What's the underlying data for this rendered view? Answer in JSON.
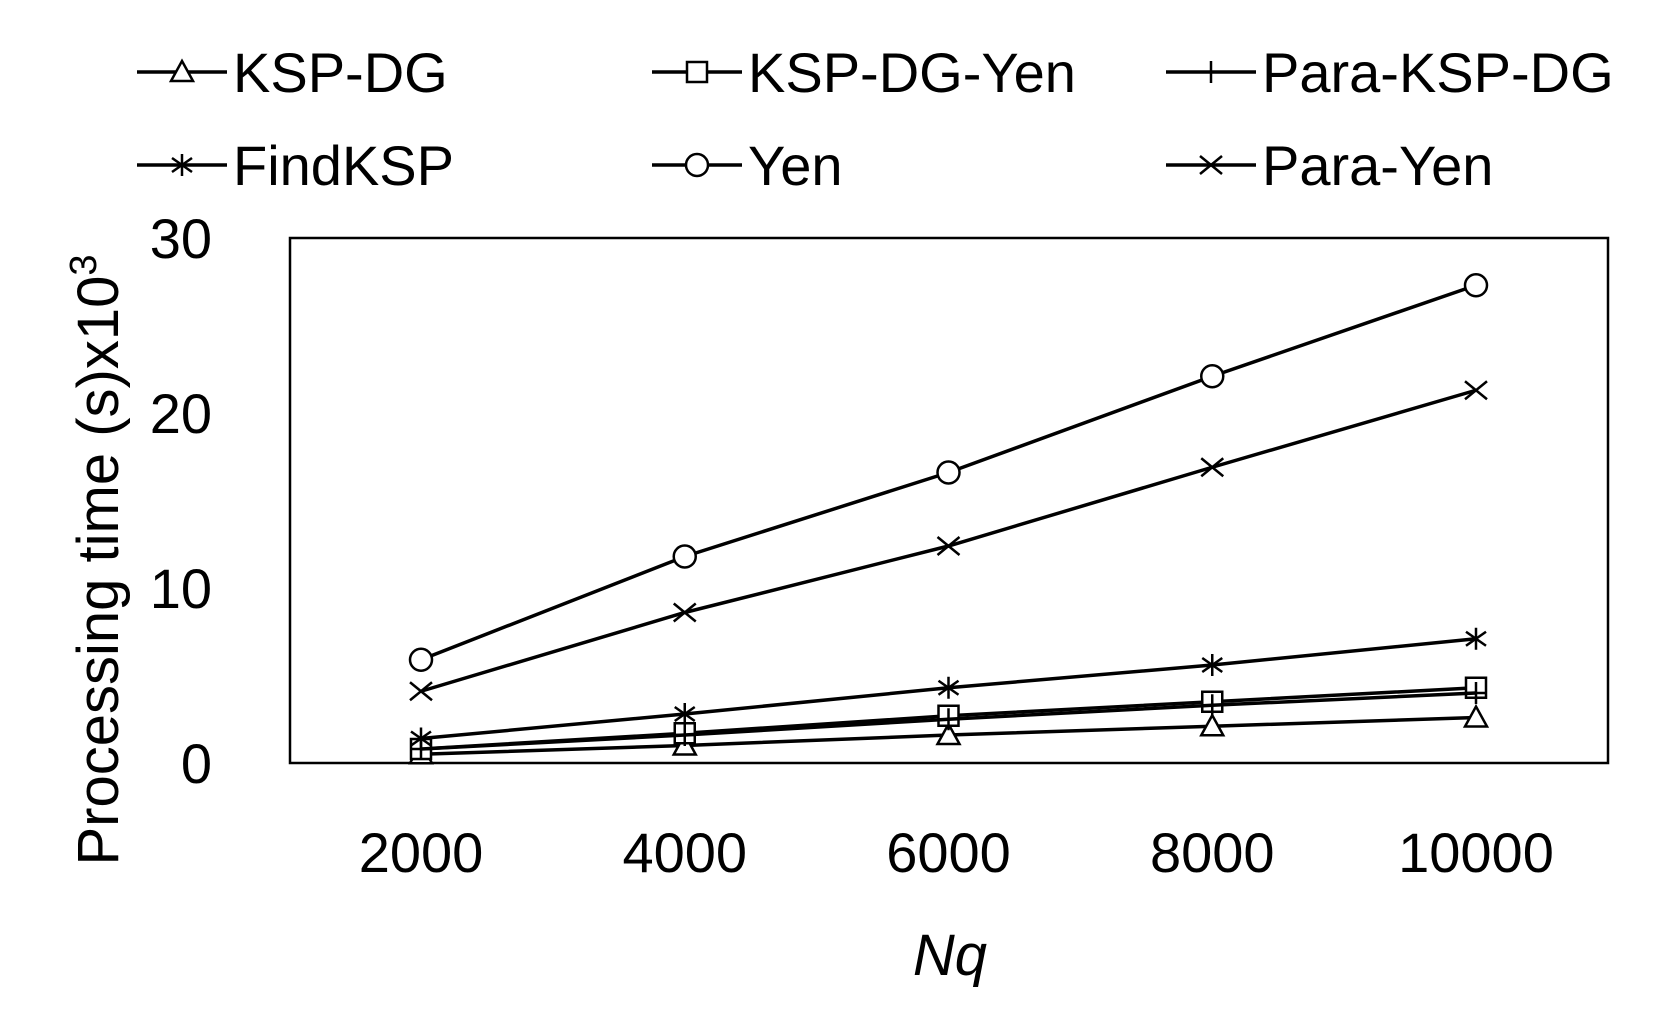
{
  "chart_data": {
    "type": "line",
    "x": [
      2000,
      4000,
      6000,
      8000,
      10000
    ],
    "xticks": [
      "2000",
      "4000",
      "6000",
      "8000",
      "10000"
    ],
    "yticks": [
      "0",
      "10",
      "20",
      "30"
    ],
    "ylim": [
      0,
      30
    ],
    "xlabel": "Nq",
    "ylabel_main": "Processing time (s)x10",
    "ylabel_sup": "3",
    "grid": false,
    "legend_position": "top",
    "series": [
      {
        "name": "KSP-DG",
        "marker": "triangle",
        "values": [
          0.5,
          1.0,
          1.6,
          2.1,
          2.6
        ]
      },
      {
        "name": "KSP-DG-Yen",
        "marker": "square",
        "values": [
          0.8,
          1.7,
          2.7,
          3.5,
          4.3
        ]
      },
      {
        "name": "Para-KSP-DG",
        "marker": "plus",
        "values": [
          0.8,
          1.6,
          2.5,
          3.3,
          4.0
        ]
      },
      {
        "name": "FindKSP",
        "marker": "asterisk",
        "values": [
          1.4,
          2.8,
          4.3,
          5.6,
          7.1
        ]
      },
      {
        "name": "Yen",
        "marker": "circle",
        "values": [
          5.9,
          11.8,
          16.6,
          22.1,
          27.3
        ]
      },
      {
        "name": "Para-Yen",
        "marker": "x",
        "values": [
          4.1,
          8.6,
          12.4,
          16.9,
          21.3
        ]
      }
    ]
  }
}
